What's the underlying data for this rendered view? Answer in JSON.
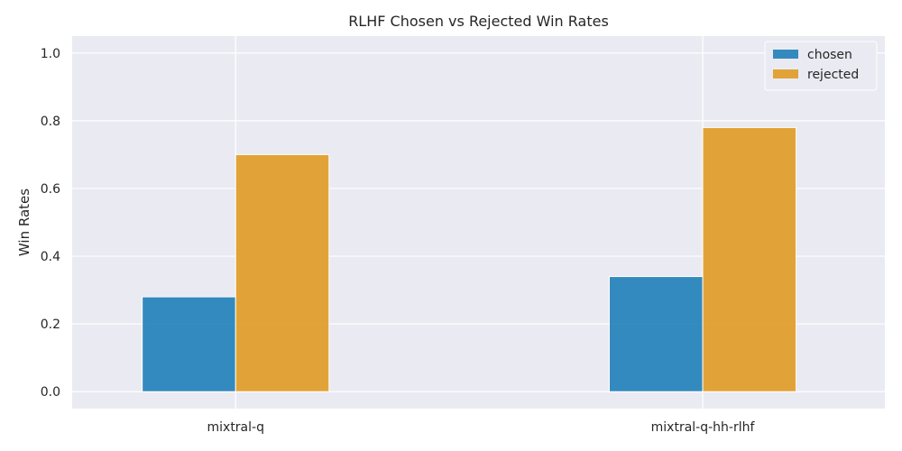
{
  "chart_data": {
    "type": "bar",
    "title": "RLHF Chosen vs Rejected Win Rates",
    "xlabel": "",
    "ylabel": "Win Rates",
    "categories": [
      "mixtral-q",
      "mixtral-q-hh-rlhf"
    ],
    "series": [
      {
        "name": "chosen",
        "values": [
          0.28,
          0.34
        ],
        "color": "#1f7fb8"
      },
      {
        "name": "rejected",
        "values": [
          0.7,
          0.78
        ],
        "color": "#e09b23"
      }
    ],
    "ylim": [
      -0.05,
      1.05
    ],
    "yticks": [
      "0.0",
      "0.2",
      "0.4",
      "0.6",
      "0.8",
      "1.0"
    ],
    "grid": true,
    "legend_position": "top-right",
    "background_color": "#eaeaf2",
    "grid_color": "#ffffff"
  }
}
